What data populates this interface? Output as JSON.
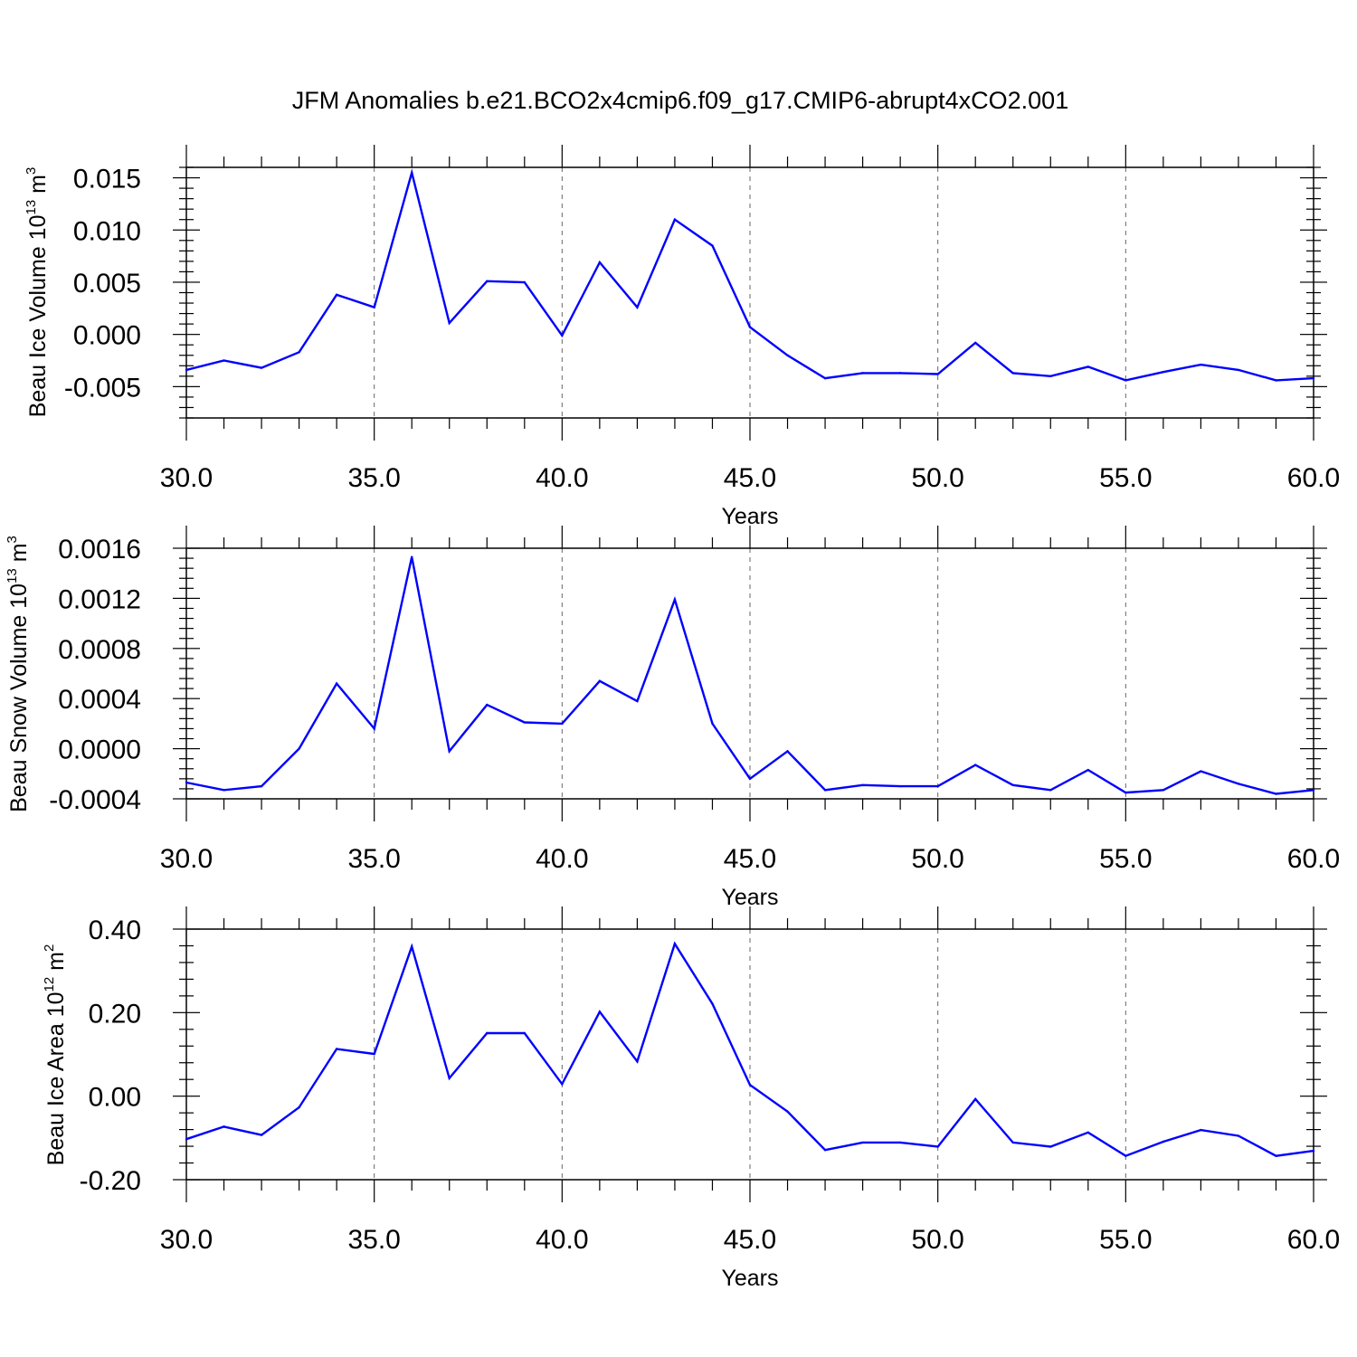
{
  "title": "JFM Anomalies b.e21.BCO2x4cmip6.f09_g17.CMIP6-abrupt4xCO2.001",
  "chart_data": [
    {
      "type": "line",
      "xlabel": "Years",
      "ylabel": {
        "base": "Beau Ice Volume 10",
        "exp": "13",
        "unit": " m",
        "unit_exp": "3"
      },
      "xlim": [
        30,
        60
      ],
      "ylim": [
        -0.008,
        0.016
      ],
      "xticks": [
        30,
        35,
        40,
        45,
        50,
        55,
        60
      ],
      "xtick_labels": [
        "30.0",
        "35.0",
        "40.0",
        "45.0",
        "50.0",
        "55.0",
        "60.0"
      ],
      "yticks": [
        -0.005,
        0.0,
        0.005,
        0.01,
        0.015
      ],
      "ytick_labels": [
        "-0.005",
        "0.000",
        "0.005",
        "0.010",
        "0.015"
      ],
      "vgrid": "dashed at major x ticks",
      "color": "#0000ff",
      "x": [
        30,
        31,
        32,
        33,
        34,
        35,
        36,
        37,
        38,
        39,
        40,
        41,
        42,
        43,
        44,
        45,
        46,
        47,
        48,
        49,
        50,
        51,
        52,
        53,
        54,
        55,
        56,
        57,
        58,
        59,
        60
      ],
      "y": [
        -0.0034,
        -0.0025,
        -0.0032,
        -0.0017,
        0.0038,
        0.0026,
        0.0155,
        0.0011,
        0.0051,
        0.005,
        -0.0001,
        0.0069,
        0.0026,
        0.011,
        0.0085,
        0.0007,
        -0.002,
        -0.0042,
        -0.0037,
        -0.0037,
        -0.0038,
        -0.0008,
        -0.0037,
        -0.004,
        -0.0031,
        -0.0044,
        -0.0036,
        -0.0029,
        -0.0034,
        -0.0044,
        -0.0042
      ]
    },
    {
      "type": "line",
      "xlabel": "Years",
      "ylabel": {
        "base": "Beau Snow Volume 10",
        "exp": "13",
        "unit": " m",
        "unit_exp": "3"
      },
      "xlim": [
        30,
        60
      ],
      "ylim": [
        -0.0004,
        0.0016
      ],
      "xticks": [
        30,
        35,
        40,
        45,
        50,
        55,
        60
      ],
      "xtick_labels": [
        "30.0",
        "35.0",
        "40.0",
        "45.0",
        "50.0",
        "55.0",
        "60.0"
      ],
      "yticks": [
        -0.0004,
        0.0,
        0.0004,
        0.0008,
        0.0012,
        0.0016
      ],
      "ytick_labels": [
        "-0.0004",
        "0.0000",
        "0.0004",
        "0.0008",
        "0.0012",
        "0.0016"
      ],
      "vgrid": "dashed at major x ticks",
      "color": "#0000ff",
      "x": [
        30,
        31,
        32,
        33,
        34,
        35,
        36,
        37,
        38,
        39,
        40,
        41,
        42,
        43,
        44,
        45,
        46,
        47,
        48,
        49,
        50,
        51,
        52,
        53,
        54,
        55,
        56,
        57,
        58,
        59,
        60
      ],
      "y": [
        -0.00027,
        -0.00033,
        -0.0003,
        0.0,
        0.00052,
        0.00016,
        0.00153,
        -2e-05,
        0.00035,
        0.00021,
        0.0002,
        0.00054,
        0.00038,
        0.00119,
        0.0002,
        -0.00024,
        -2e-05,
        -0.00033,
        -0.00029,
        -0.0003,
        -0.0003,
        -0.00013,
        -0.00029,
        -0.00033,
        -0.00017,
        -0.00035,
        -0.00033,
        -0.00018,
        -0.00028,
        -0.00036,
        -0.00033
      ]
    },
    {
      "type": "line",
      "xlabel": "Years",
      "ylabel": {
        "base": "Beau Ice Area 10",
        "exp": "12",
        "unit": " m",
        "unit_exp": "2"
      },
      "xlim": [
        30,
        60
      ],
      "ylim": [
        -0.2,
        0.4
      ],
      "xticks": [
        30,
        35,
        40,
        45,
        50,
        55,
        60
      ],
      "xtick_labels": [
        "30.0",
        "35.0",
        "40.0",
        "45.0",
        "50.0",
        "55.0",
        "60.0"
      ],
      "yticks": [
        -0.2,
        0.0,
        0.2,
        0.4
      ],
      "ytick_labels": [
        "-0.20",
        "0.00",
        "0.20",
        "0.40"
      ],
      "vgrid": "dashed at major x ticks",
      "color": "#0000ff",
      "x": [
        30,
        31,
        32,
        33,
        34,
        35,
        36,
        37,
        38,
        39,
        40,
        41,
        42,
        43,
        44,
        45,
        46,
        47,
        48,
        49,
        50,
        51,
        52,
        53,
        54,
        55,
        56,
        57,
        58,
        59,
        60
      ],
      "y": [
        -0.103,
        -0.073,
        -0.093,
        -0.027,
        0.113,
        0.101,
        0.358,
        0.043,
        0.151,
        0.151,
        0.029,
        0.202,
        0.083,
        0.365,
        0.221,
        0.027,
        -0.037,
        -0.129,
        -0.111,
        -0.111,
        -0.121,
        -0.007,
        -0.111,
        -0.121,
        -0.087,
        -0.143,
        -0.109,
        -0.081,
        -0.095,
        -0.143,
        -0.131
      ]
    }
  ]
}
